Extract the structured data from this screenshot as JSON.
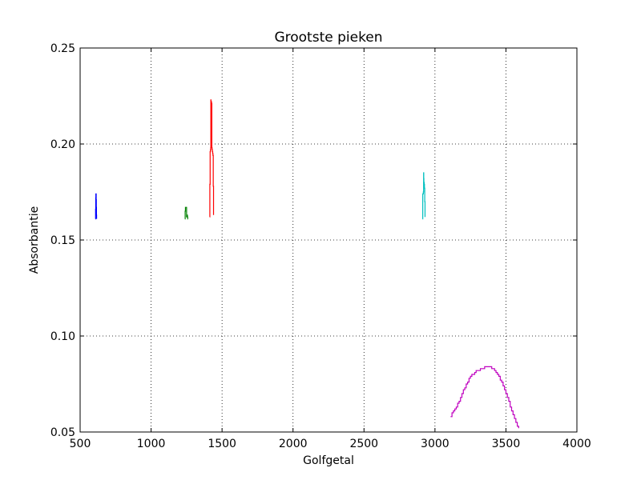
{
  "chart_data": {
    "type": "line",
    "title": "Grootste pieken",
    "xlabel": "Golfgetal",
    "ylabel": "Absorbantie",
    "xlim": [
      500,
      4000
    ],
    "ylim": [
      0.05,
      0.25
    ],
    "xticks": [
      500,
      1000,
      1500,
      2000,
      2500,
      3000,
      3500,
      4000
    ],
    "yticks": [
      0.05,
      0.1,
      0.15,
      0.2,
      0.25
    ],
    "xtick_labels": [
      "500",
      "1000",
      "1500",
      "2000",
      "2500",
      "3000",
      "3500",
      "4000"
    ],
    "ytick_labels": [
      "0.05",
      "0.10",
      "0.15",
      "0.20",
      "0.25"
    ],
    "grid": true,
    "legend": false,
    "series": [
      {
        "color": "#0000ff",
        "x": [
          608,
          609,
          610,
          611,
          612,
          613,
          614,
          615,
          616
        ],
        "y": [
          0.161,
          0.166,
          0.172,
          0.174,
          0.174,
          0.171,
          0.167,
          0.163,
          0.161
        ]
      },
      {
        "color": "#008000",
        "x": [
          1238,
          1240,
          1242,
          1244,
          1246,
          1248,
          1250,
          1252,
          1254,
          1256,
          1258,
          1260
        ],
        "y": [
          0.161,
          0.165,
          0.167,
          0.167,
          0.167,
          0.167,
          0.162,
          0.162,
          0.163,
          0.162,
          0.161,
          0.161
        ]
      },
      {
        "color": "#ff0000",
        "x": [
          1413,
          1414,
          1416,
          1418,
          1420,
          1421,
          1422,
          1423,
          1424,
          1425,
          1426,
          1428,
          1430,
          1432,
          1434,
          1436,
          1438,
          1440
        ],
        "y": [
          0.162,
          0.179,
          0.196,
          0.197,
          0.198,
          0.223,
          0.222,
          0.222,
          0.201,
          0.222,
          0.221,
          0.198,
          0.197,
          0.196,
          0.195,
          0.194,
          0.178,
          0.163
        ]
      },
      {
        "color": "#00bfbf",
        "x": [
          2912,
          2914,
          2916,
          2918,
          2920,
          2921,
          2922,
          2924,
          2926,
          2928,
          2930
        ],
        "y": [
          0.161,
          0.174,
          0.174,
          0.175,
          0.185,
          0.182,
          0.18,
          0.179,
          0.177,
          0.17,
          0.162
        ]
      },
      {
        "color": "#bf00bf",
        "x": [
          3110,
          3120,
          3130,
          3140,
          3150,
          3160,
          3170,
          3180,
          3190,
          3200,
          3210,
          3220,
          3230,
          3240,
          3250,
          3260,
          3270,
          3280,
          3290,
          3300,
          3310,
          3320,
          3330,
          3340,
          3350,
          3360,
          3370,
          3380,
          3390,
          3400,
          3410,
          3420,
          3430,
          3440,
          3450,
          3460,
          3470,
          3480,
          3490,
          3500,
          3510,
          3520,
          3530,
          3540,
          3550,
          3560,
          3570,
          3580,
          3590
        ],
        "y": [
          0.058,
          0.06,
          0.061,
          0.062,
          0.063,
          0.065,
          0.066,
          0.068,
          0.07,
          0.072,
          0.073,
          0.075,
          0.076,
          0.078,
          0.079,
          0.08,
          0.08,
          0.081,
          0.082,
          0.082,
          0.082,
          0.083,
          0.083,
          0.083,
          0.084,
          0.084,
          0.084,
          0.084,
          0.084,
          0.083,
          0.083,
          0.082,
          0.081,
          0.08,
          0.079,
          0.077,
          0.076,
          0.074,
          0.072,
          0.07,
          0.068,
          0.066,
          0.063,
          0.061,
          0.059,
          0.057,
          0.055,
          0.053,
          0.052
        ]
      }
    ]
  }
}
